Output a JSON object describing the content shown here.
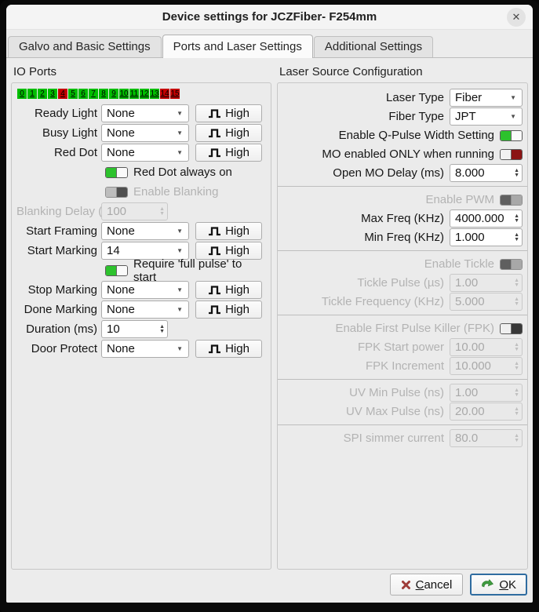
{
  "window": {
    "title": "Device settings for JCZFiber- F254mm",
    "close": "✕"
  },
  "tabs": {
    "galvo": "Galvo and Basic Settings",
    "ports": "Ports and Laser Settings",
    "additional": "Additional Settings"
  },
  "io": {
    "title": "IO Ports",
    "ports": [
      {
        "n": "0",
        "c": "g"
      },
      {
        "n": "1",
        "c": "g"
      },
      {
        "n": "2",
        "c": "g"
      },
      {
        "n": "3",
        "c": "g"
      },
      {
        "n": "4",
        "c": "r"
      },
      {
        "n": "5",
        "c": "g"
      },
      {
        "n": "6",
        "c": "g"
      },
      {
        "n": "7",
        "c": "g"
      },
      {
        "n": "8",
        "c": "g"
      },
      {
        "n": "9",
        "c": "g"
      },
      {
        "n": "10",
        "c": "g"
      },
      {
        "n": "11",
        "c": "g"
      },
      {
        "n": "12",
        "c": "g"
      },
      {
        "n": "13",
        "c": "g"
      },
      {
        "n": "14",
        "c": "r"
      },
      {
        "n": "15",
        "c": "r"
      }
    ],
    "ready": {
      "label": "Ready Light",
      "value": "None",
      "btn": "High"
    },
    "busy": {
      "label": "Busy Light",
      "value": "None",
      "btn": "High"
    },
    "reddot": {
      "label": "Red Dot",
      "value": "None",
      "btn": "High"
    },
    "reddot_always": {
      "label": "Red Dot always on",
      "state": "on"
    },
    "blanking": {
      "label": "Enable Blanking",
      "state": "off-disabled"
    },
    "blanking_delay": {
      "label": "Blanking Delay (µs)",
      "value": "100",
      "disabled": true
    },
    "start_framing": {
      "label": "Start Framing",
      "value": "None",
      "btn": "High"
    },
    "start_marking": {
      "label": "Start Marking",
      "value": "14",
      "btn": "High"
    },
    "require_pulse": {
      "label": "Require 'full pulse' to start",
      "state": "on"
    },
    "stop_marking": {
      "label": "Stop Marking",
      "value": "None",
      "btn": "High"
    },
    "done_marking": {
      "label": "Done Marking",
      "value": "None",
      "btn": "High"
    },
    "duration": {
      "label": "Duration (ms)",
      "value": "10"
    },
    "door_protect": {
      "label": "Door Protect",
      "value": "None",
      "btn": "High"
    }
  },
  "laser": {
    "title": "Laser Source Configuration",
    "laser_type": {
      "label": "Laser Type",
      "value": "Fiber"
    },
    "fiber_type": {
      "label": "Fiber Type",
      "value": "JPT"
    },
    "q_pulse": {
      "label": "Enable Q-Pulse Width Setting",
      "state": "on"
    },
    "mo_enabled": {
      "label": "MO enabled ONLY when running",
      "state": "off-red"
    },
    "open_mo_delay": {
      "label": "Open MO Delay (ms)",
      "value": "8.000"
    },
    "enable_pwm": {
      "label": "Enable PWM",
      "state": "on-disabled"
    },
    "max_freq": {
      "label": "Max Freq (KHz)",
      "value": "4000.000"
    },
    "min_freq": {
      "label": "Min Freq (KHz)",
      "value": "1.000"
    },
    "enable_tickle": {
      "label": "Enable Tickle",
      "state": "on-disabled"
    },
    "tickle_pulse": {
      "label": "Tickle Pulse (µs)",
      "value": "1.00",
      "disabled": true
    },
    "tickle_freq": {
      "label": "Tickle Frequency (KHz)",
      "value": "5.000",
      "disabled": true
    },
    "enable_fpk": {
      "label": "Enable First Pulse Killer (FPK)",
      "state": "off"
    },
    "fpk_start": {
      "label": "FPK Start power",
      "value": "10.00",
      "disabled": true
    },
    "fpk_incr": {
      "label": "FPK Increment",
      "value": "10.000",
      "disabled": true
    },
    "uv_min": {
      "label": "UV Min Pulse (ns)",
      "value": "1.00",
      "disabled": true
    },
    "uv_max": {
      "label": "UV Max Pulse (ns)",
      "value": "20.00",
      "disabled": true
    },
    "spi": {
      "label": "SPI simmer current",
      "value": "80.0",
      "disabled": true
    }
  },
  "footer": {
    "cancel": "Cancel",
    "ok": "OK"
  },
  "colors": {
    "port_green": "#00bd00",
    "port_red": "#c40000",
    "toggle_green": "#2dc22d",
    "toggle_red": "#8b1414",
    "cancel_icon_red": "#9e3c38",
    "ok_icon_green": "#3f9b3f"
  }
}
